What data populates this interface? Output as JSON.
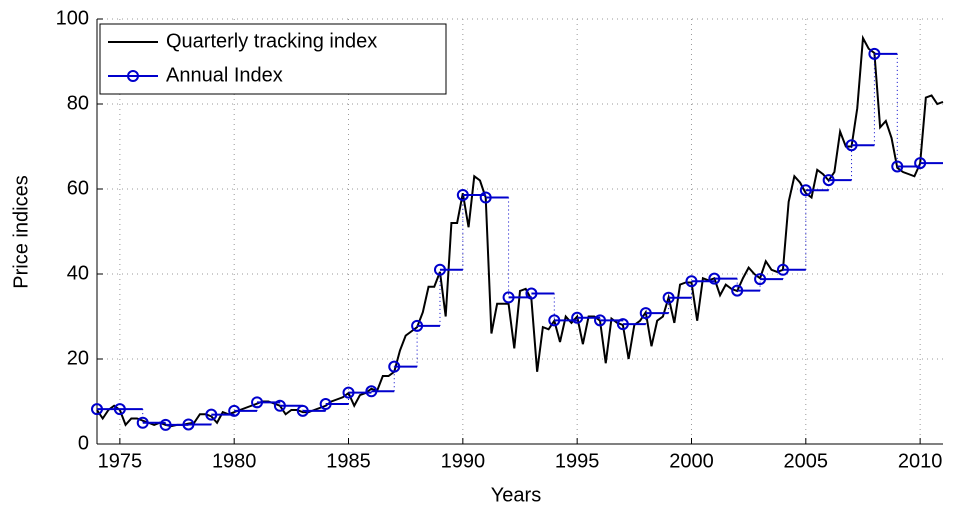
{
  "chart_data": {
    "type": "line",
    "xlabel": "Years",
    "ylabel": "Price indices",
    "xlim": [
      1974,
      2011
    ],
    "xticks": [
      1975,
      1980,
      1985,
      1990,
      1995,
      2000,
      2005,
      2010
    ],
    "ylim": [
      0,
      100
    ],
    "yticks": [
      0,
      20,
      40,
      60,
      80,
      100
    ],
    "grid": true,
    "legend": "upper left",
    "series": [
      {
        "name": "Quarterly tracking index",
        "color": "#000000",
        "style": "line",
        "x": [
          1974,
          1974.25,
          1974.5,
          1974.75,
          1975,
          1975.25,
          1975.5,
          1975.75,
          1976,
          1976.25,
          1976.5,
          1976.75,
          1977,
          1977.25,
          1977.5,
          1977.75,
          1978,
          1978.25,
          1978.5,
          1978.75,
          1979,
          1979.25,
          1979.5,
          1979.75,
          1980,
          1980.25,
          1980.5,
          1980.75,
          1981,
          1981.25,
          1981.5,
          1981.75,
          1982,
          1982.25,
          1982.5,
          1982.75,
          1983,
          1983.25,
          1983.5,
          1983.75,
          1984,
          1984.25,
          1984.5,
          1984.75,
          1985,
          1985.25,
          1985.5,
          1985.75,
          1986,
          1986.25,
          1986.5,
          1986.75,
          1987,
          1987.25,
          1987.5,
          1987.75,
          1988,
          1988.25,
          1988.5,
          1988.75,
          1989,
          1989.25,
          1989.5,
          1989.75,
          1990,
          1990.25,
          1990.5,
          1990.75,
          1991,
          1991.25,
          1991.5,
          1991.75,
          1992,
          1992.25,
          1992.5,
          1992.75,
          1993,
          1993.25,
          1993.5,
          1993.75,
          1994,
          1994.25,
          1994.5,
          1994.75,
          1995,
          1995.25,
          1995.5,
          1995.75,
          1996,
          1996.25,
          1996.5,
          1996.75,
          1997,
          1997.25,
          1997.5,
          1997.75,
          1998,
          1998.25,
          1998.5,
          1998.75,
          1999,
          1999.25,
          1999.5,
          1999.75,
          2000,
          2000.25,
          2000.5,
          2000.75,
          2001,
          2001.25,
          2001.5,
          2001.75,
          2002,
          2002.25,
          2002.5,
          2002.75,
          2003,
          2003.25,
          2003.5,
          2003.75,
          2004,
          2004.25,
          2004.5,
          2004.75,
          2005,
          2005.25,
          2005.5,
          2005.75,
          2006,
          2006.25,
          2006.5,
          2006.75,
          2007,
          2007.25,
          2007.5,
          2007.75,
          2008,
          2008.25,
          2008.5,
          2008.75,
          2009,
          2009.25,
          2009.5,
          2009.75,
          2010,
          2010.25,
          2010.5,
          2010.75,
          2011
        ],
        "values": [
          8,
          6,
          8,
          9,
          8,
          4.5,
          6,
          6,
          5.5,
          5,
          4.5,
          5,
          4.5,
          4.2,
          4.5,
          4.5,
          4.8,
          5,
          7,
          7,
          6.5,
          5,
          7.5,
          7,
          7.5,
          8,
          8.5,
          9,
          9.5,
          10,
          10,
          9.5,
          9,
          7,
          8,
          8,
          7.5,
          7.5,
          8,
          8.5,
          9,
          10,
          10.5,
          11,
          12,
          9,
          11.5,
          12,
          13,
          12.5,
          16,
          16,
          17,
          22,
          25.5,
          26.5,
          27.5,
          31,
          37,
          37,
          40.5,
          30,
          52,
          52,
          59,
          51,
          63,
          62,
          58,
          26,
          33,
          33,
          33,
          22.5,
          36,
          36.5,
          34,
          17,
          27.5,
          27,
          29,
          24,
          30,
          28.5,
          30,
          23.5,
          30,
          30,
          29,
          19,
          29.5,
          28.5,
          28,
          20,
          28,
          29,
          31,
          23,
          29,
          30,
          34.5,
          28.5,
          37.5,
          38,
          38,
          29,
          39,
          38.5,
          39,
          35,
          37.5,
          36.5,
          36,
          39,
          41.5,
          40,
          39,
          43,
          41,
          40.5,
          41,
          57,
          63,
          61.5,
          59,
          58,
          64.5,
          63.5,
          62,
          64,
          73.5,
          70,
          70,
          79,
          95.5,
          93,
          92,
          74.5,
          76,
          72,
          65,
          64,
          63.5,
          63,
          66,
          81.5,
          82,
          80,
          80.5
        ]
      },
      {
        "name": "Annual Index",
        "color": "#0000cc",
        "style": "step-marker",
        "x": [
          1974,
          1975,
          1976,
          1977,
          1978,
          1979,
          1980,
          1981,
          1982,
          1983,
          1984,
          1985,
          1986,
          1987,
          1988,
          1989,
          1990,
          1991,
          1992,
          1993,
          1994,
          1995,
          1996,
          1997,
          1998,
          1999,
          2000,
          2001,
          2002,
          2003,
          2004,
          2005,
          2006,
          2007,
          2008,
          2009,
          2010
        ],
        "values": [
          8.2,
          8.2,
          5.0,
          4.5,
          4.6,
          6.9,
          7.8,
          9.8,
          9.0,
          7.8,
          9.4,
          12.1,
          12.4,
          18.2,
          27.8,
          41.0,
          58.6,
          58.0,
          34.5,
          35.4,
          29.1,
          29.7,
          29.1,
          28.2,
          30.8,
          34.4,
          38.3,
          38.9,
          36.1,
          38.8,
          41.0,
          59.7,
          62.1,
          70.3,
          91.8,
          65.3,
          66.1
        ]
      }
    ]
  }
}
